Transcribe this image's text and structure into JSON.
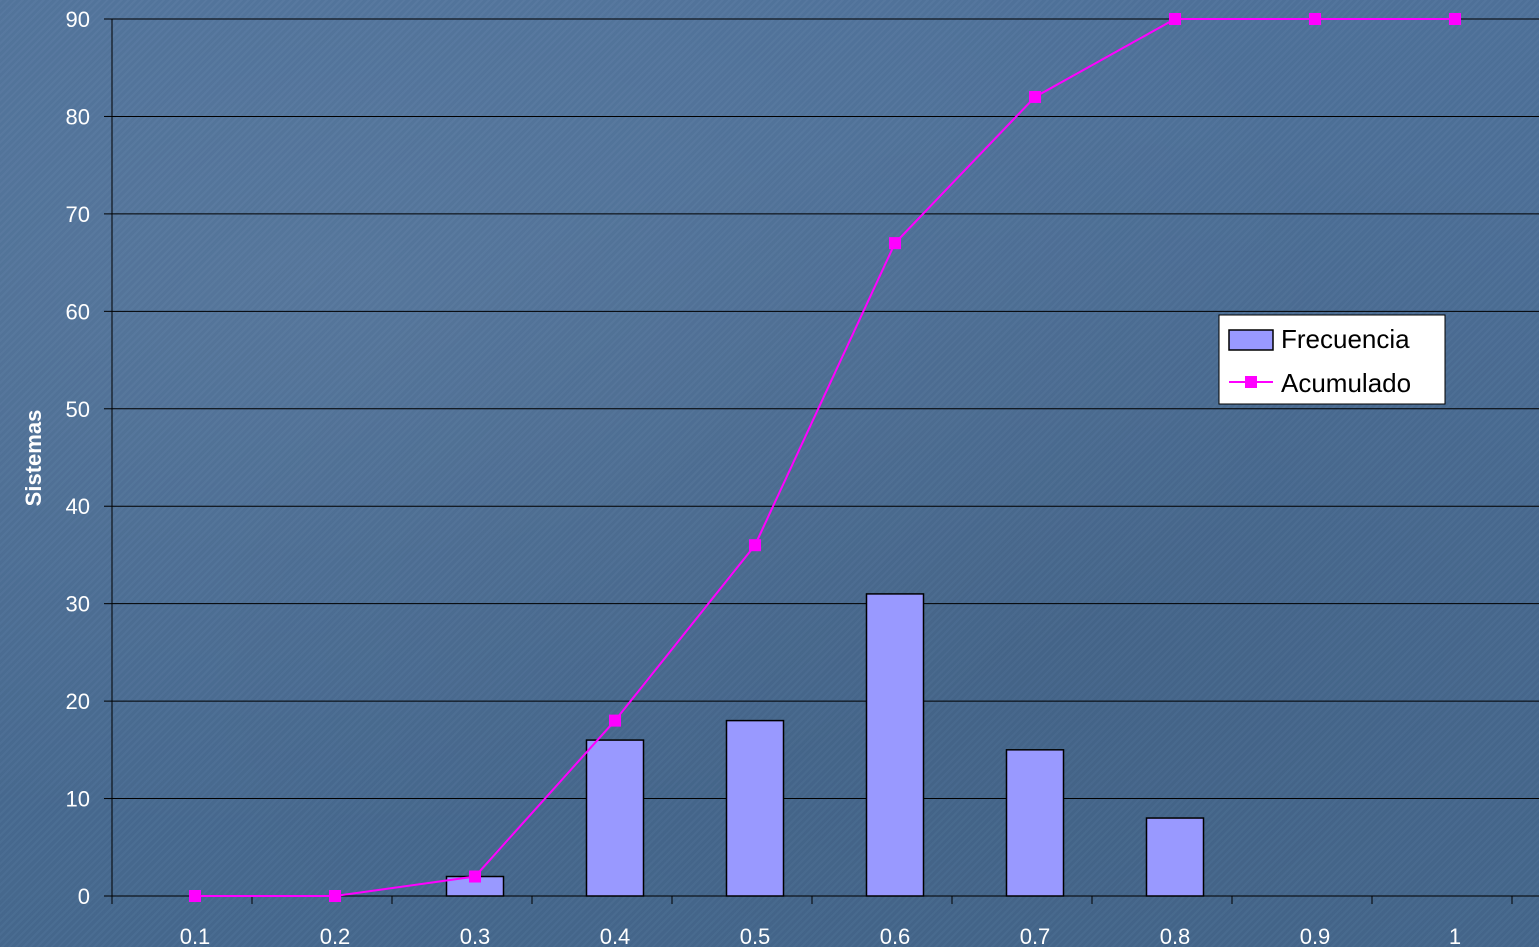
{
  "chart_data": {
    "type": "bar",
    "categories": [
      "0.1",
      "0.2",
      "0.3",
      "0.4",
      "0.5",
      "0.6",
      "0.7",
      "0.8",
      "0.9",
      "1"
    ],
    "series": [
      {
        "name": "Frecuencia",
        "type": "bar",
        "values": [
          0,
          0,
          2,
          16,
          18,
          31,
          15,
          8,
          0,
          0
        ],
        "color": "#9999ff"
      },
      {
        "name": "Acumulado",
        "type": "line",
        "values": [
          0,
          0,
          2,
          18,
          36,
          67,
          82,
          90,
          90,
          90
        ],
        "color": "#ff00ff"
      }
    ],
    "ylabel": "Sistemas",
    "xlabel": "",
    "ylim": [
      0,
      90
    ],
    "yticks": [
      "0",
      "10",
      "20",
      "30",
      "40",
      "50",
      "60",
      "70",
      "80",
      "90"
    ],
    "grid": true,
    "legend_position": "right"
  }
}
